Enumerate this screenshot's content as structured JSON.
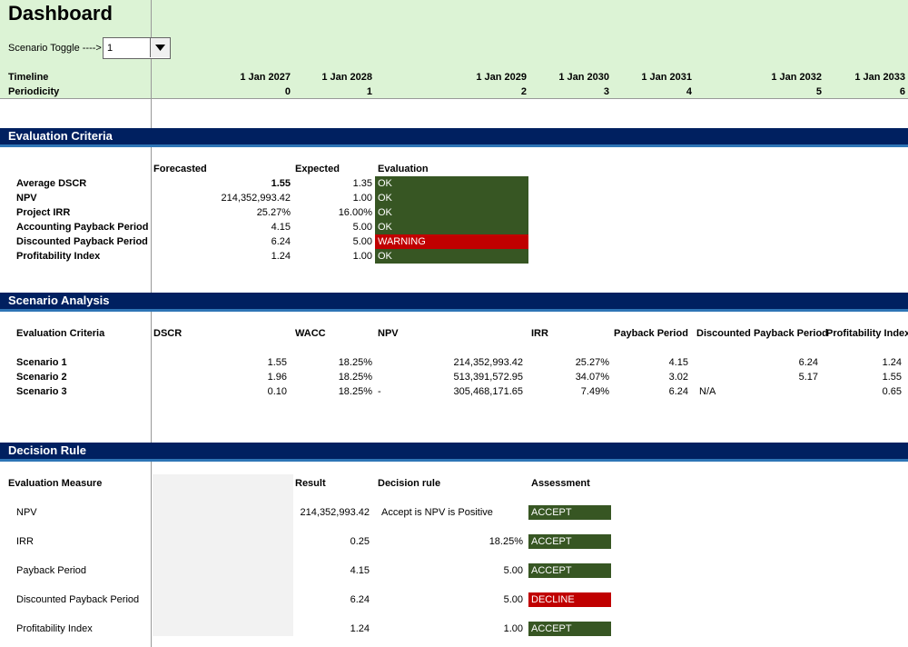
{
  "header": {
    "title": "Dashboard",
    "toggle_label": "Scenario Toggle ---->",
    "toggle_value": "1",
    "timeline_label": "Timeline",
    "periodicity_label": "Periodicity",
    "dates": [
      "1 Jan 2027",
      "1 Jan 2028",
      "1 Jan 2029",
      "1 Jan 2030",
      "1 Jan 2031",
      "1 Jan 2032",
      "1 Jan 2033"
    ],
    "periods": [
      "0",
      "1",
      "2",
      "3",
      "4",
      "5",
      "6"
    ]
  },
  "evaluation": {
    "title": "Evaluation Criteria",
    "headers": [
      "Forecasted",
      "Expected",
      "Evaluation"
    ],
    "rows": [
      {
        "label": "Average DSCR",
        "forecasted": "1.55",
        "expected": "1.35",
        "evaluation": "OK",
        "color": "#375623"
      },
      {
        "label": "NPV",
        "forecasted": "214,352,993.42",
        "expected": "1.00",
        "evaluation": "OK",
        "color": "#375623"
      },
      {
        "label": "Project IRR",
        "forecasted": "25.27%",
        "expected": "16.00%",
        "evaluation": "OK",
        "color": "#375623"
      },
      {
        "label": "Accounting Payback Period",
        "forecasted": "4.15",
        "expected": "5.00",
        "evaluation": "OK",
        "color": "#375623"
      },
      {
        "label": "Discounted Payback Period",
        "forecasted": "6.24",
        "expected": "5.00",
        "evaluation": "WARNING",
        "color": "#c00000"
      },
      {
        "label": "Profitability Index",
        "forecasted": "1.24",
        "expected": "1.00",
        "evaluation": "OK",
        "color": "#375623"
      }
    ]
  },
  "scenario_analysis": {
    "title": "Scenario Analysis",
    "headers": [
      "Evaluation Criteria",
      "DSCR",
      "WACC",
      "NPV",
      "IRR",
      "Payback Period",
      "Discounted Payback Period",
      "Profitability Index"
    ],
    "rows": [
      [
        "Scenario 1",
        "1.55",
        "18.25%",
        "214,352,993.42",
        "25.27%",
        "4.15",
        "6.24",
        "1.24"
      ],
      [
        "Scenario 2",
        "1.96",
        "18.25%",
        "513,391,572.95",
        "34.07%",
        "3.02",
        "5.17",
        "1.55"
      ],
      [
        "Scenario 3",
        "0.10",
        "18.25%",
        [
          "-",
          "305,468,171.65"
        ],
        "7.49%",
        "6.24",
        "N/A",
        "0.65"
      ]
    ]
  },
  "decision_rule": {
    "title": "Decision Rule",
    "headers": [
      "Evaluation Measure",
      "Result",
      "Decision rule",
      "Assessment"
    ],
    "rows": [
      {
        "measure": "NPV",
        "result": "214,352,993.42",
        "rule": "Accept is NPV is Positive",
        "assessment": "ACCEPT",
        "color": "#375623"
      },
      {
        "measure": "IRR",
        "result": "0.25",
        "rule": "18.25%",
        "assessment": "ACCEPT",
        "color": "#375623"
      },
      {
        "measure": "Payback Period",
        "result": "4.15",
        "rule": "5.00",
        "assessment": "ACCEPT",
        "color": "#375623"
      },
      {
        "measure": "Discounted Payback Period",
        "result": "6.24",
        "rule": "5.00",
        "assessment": "DECLINE",
        "color": "#c00000"
      },
      {
        "measure": "Profitability Index",
        "result": "1.24",
        "rule": "1.00",
        "assessment": "ACCEPT",
        "color": "#375623"
      }
    ]
  }
}
